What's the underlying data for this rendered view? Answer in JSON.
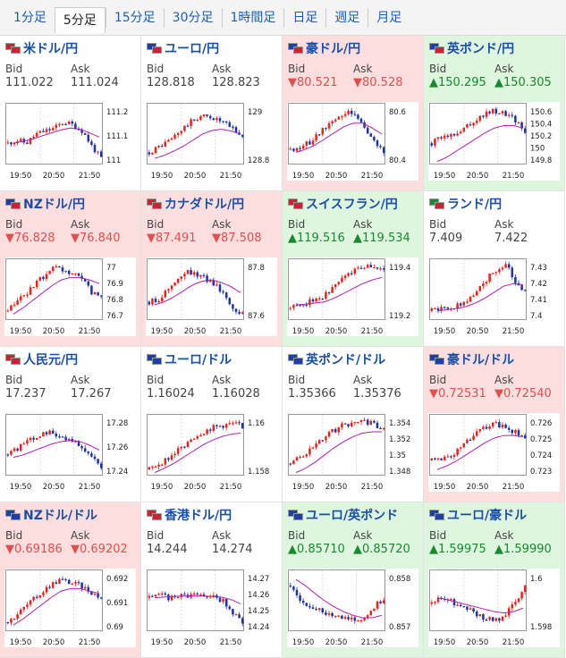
{
  "tabs": [
    {
      "label": "1分足",
      "active": false
    },
    {
      "label": "5分足",
      "active": true
    },
    {
      "label": "15分足",
      "active": false
    },
    {
      "label": "30分足",
      "active": false
    },
    {
      "label": "1時間足",
      "active": false
    },
    {
      "label": "日足",
      "active": false
    },
    {
      "label": "週足",
      "active": false
    },
    {
      "label": "月足",
      "active": false
    }
  ],
  "bid_label": "Bid",
  "ask_label": "Ask",
  "x_ticks": [
    "19:50",
    "20:50",
    "21:50"
  ],
  "colors": {
    "up": "#178a2e",
    "down": "#e0504d",
    "neutral": "#444444",
    "candle_up": "#e8231c",
    "candle_down": "#1f33a8",
    "ma": "#b020b0",
    "down_bg": "#fddede",
    "up_bg": "#def5de"
  },
  "pairs": [
    {
      "name": "米ドル/円",
      "status": "neutral",
      "flags": [
        "#cc2233",
        "#cc2233"
      ],
      "bid": "111.022",
      "ask": "111.024",
      "y_ticks": [
        "111.2",
        "111.1",
        "111"
      ],
      "chart_data": {
        "type": "candlestick",
        "shape": [
          0.35,
          0.4,
          0.35,
          0.5,
          0.55,
          0.6,
          0.7,
          0.65,
          0.55,
          0.3,
          0.1
        ],
        "ma_shape": [
          0.35,
          0.38,
          0.42,
          0.47,
          0.52,
          0.57,
          0.6,
          0.58,
          0.52,
          0.45
        ]
      }
    },
    {
      "name": "ユーロ/円",
      "status": "neutral",
      "flags": [
        "#1f3fa8",
        "#cc2233"
      ],
      "bid": "128.818",
      "ask": "128.823",
      "y_ticks": [
        "129",
        "128.8"
      ],
      "chart_data": {
        "type": "candlestick",
        "shape": [
          0.2,
          0.3,
          0.4,
          0.55,
          0.7,
          0.8,
          0.78,
          0.7,
          0.6,
          0.45
        ],
        "ma_shape": [
          0.1,
          0.15,
          0.22,
          0.3,
          0.4,
          0.5,
          0.56,
          0.58,
          0.55,
          0.5
        ]
      }
    },
    {
      "name": "豪ドル/円",
      "status": "down",
      "flags": [
        "#1f3fa8",
        "#cc2233"
      ],
      "bid": "▼80.521",
      "ask": "▼80.528",
      "y_ticks": [
        "80.6",
        "80.4"
      ],
      "chart_data": {
        "type": "candlestick",
        "shape": [
          0.25,
          0.3,
          0.35,
          0.5,
          0.65,
          0.78,
          0.85,
          0.8,
          0.6,
          0.35,
          0.2
        ],
        "ma_shape": [
          0.2,
          0.25,
          0.32,
          0.42,
          0.52,
          0.62,
          0.68,
          0.68,
          0.6,
          0.5
        ]
      }
    },
    {
      "name": "英ポンド/円",
      "status": "up",
      "flags": [
        "#1f3fa8",
        "#cc2233"
      ],
      "bid": "▲150.295",
      "ask": "▲150.305",
      "y_ticks": [
        "150.6",
        "150.4",
        "150.2",
        "150",
        "149.8"
      ],
      "chart_data": {
        "type": "candlestick",
        "shape": [
          0.35,
          0.45,
          0.5,
          0.6,
          0.72,
          0.82,
          0.88,
          0.85,
          0.75,
          0.55
        ],
        "ma_shape": [
          0.05,
          0.12,
          0.22,
          0.32,
          0.42,
          0.52,
          0.6,
          0.64,
          0.64,
          0.6
        ]
      }
    },
    {
      "name": "NZドル/円",
      "status": "down",
      "flags": [
        "#1f3fa8",
        "#cc2233"
      ],
      "bid": "▼76.828",
      "ask": "▼76.840",
      "y_ticks": [
        "77",
        "76.9",
        "76.8",
        "76.7"
      ],
      "chart_data": {
        "type": "candlestick",
        "shape": [
          0.15,
          0.3,
          0.45,
          0.6,
          0.75,
          0.85,
          0.8,
          0.75,
          0.65,
          0.45,
          0.35
        ],
        "ma_shape": [
          0.1,
          0.2,
          0.32,
          0.44,
          0.56,
          0.66,
          0.7,
          0.7,
          0.66,
          0.6
        ]
      }
    },
    {
      "name": "カナダドル/円",
      "status": "down",
      "flags": [
        "#cc2233",
        "#cc2233"
      ],
      "bid": "▼87.491",
      "ask": "▼87.508",
      "y_ticks": [
        "87.8",
        "87.6"
      ],
      "chart_data": {
        "type": "candlestick",
        "shape": [
          0.3,
          0.35,
          0.5,
          0.65,
          0.8,
          0.75,
          0.68,
          0.6,
          0.45,
          0.2,
          0.1
        ],
        "ma_shape": [
          0.25,
          0.3,
          0.38,
          0.48,
          0.58,
          0.64,
          0.66,
          0.62,
          0.55,
          0.45
        ]
      }
    },
    {
      "name": "スイスフラン/円",
      "status": "up",
      "flags": [
        "#cc2233",
        "#cc2233"
      ],
      "bid": "▲119.516",
      "ask": "▲119.534",
      "y_ticks": [
        "119.4",
        "119.2"
      ],
      "chart_data": {
        "type": "candlestick",
        "shape": [
          0.2,
          0.25,
          0.3,
          0.35,
          0.45,
          0.6,
          0.75,
          0.85,
          0.9,
          0.88,
          0.82
        ],
        "ma_shape": [
          0.25,
          0.26,
          0.28,
          0.3,
          0.36,
          0.44,
          0.52,
          0.6,
          0.66,
          0.7
        ]
      }
    },
    {
      "name": "ランド/円",
      "status": "neutral",
      "flags": [
        "#1a8a3a",
        "#cc2233"
      ],
      "bid": "7.409",
      "ask": "7.422",
      "y_ticks": [
        "7.43",
        "7.42",
        "7.41",
        "7.4"
      ],
      "chart_data": {
        "type": "candlestick",
        "shape": [
          0.15,
          0.2,
          0.2,
          0.25,
          0.35,
          0.5,
          0.7,
          0.85,
          0.9,
          0.6,
          0.5
        ],
        "ma_shape": [
          0.15,
          0.17,
          0.19,
          0.22,
          0.28,
          0.36,
          0.46,
          0.56,
          0.6,
          0.58
        ]
      }
    },
    {
      "name": "人民元/円",
      "status": "neutral",
      "flags": [
        "#cc2233",
        "#cc2233"
      ],
      "bid": "17.237",
      "ask": "17.267",
      "y_ticks": [
        "17.28",
        "17.26",
        "17.24"
      ],
      "chart_data": {
        "type": "candlestick",
        "shape": [
          0.35,
          0.45,
          0.55,
          0.65,
          0.72,
          0.7,
          0.62,
          0.55,
          0.45,
          0.3,
          0.15
        ],
        "ma_shape": [
          0.3,
          0.34,
          0.4,
          0.46,
          0.52,
          0.56,
          0.58,
          0.56,
          0.5,
          0.42
        ]
      }
    },
    {
      "name": "ユーロ/ドル",
      "status": "neutral",
      "flags": [
        "#1f3fa8",
        "#1f3fa8"
      ],
      "bid": "1.16024",
      "ask": "1.16028",
      "y_ticks": [
        "1.16",
        "1.158"
      ],
      "chart_data": {
        "type": "candlestick",
        "shape": [
          0.1,
          0.2,
          0.3,
          0.45,
          0.6,
          0.7,
          0.78,
          0.82,
          0.85,
          0.82
        ],
        "ma_shape": [
          0.05,
          0.12,
          0.2,
          0.3,
          0.4,
          0.5,
          0.58,
          0.64,
          0.68,
          0.7
        ]
      }
    },
    {
      "name": "英ポンド/ドル",
      "status": "neutral",
      "flags": [
        "#1f3fa8",
        "#1f3fa8"
      ],
      "bid": "1.35366",
      "ask": "1.35376",
      "y_ticks": [
        "1.354",
        "1.352",
        "1.35",
        "1.348"
      ],
      "chart_data": {
        "type": "candlestick",
        "shape": [
          0.2,
          0.3,
          0.45,
          0.6,
          0.72,
          0.82,
          0.88,
          0.9,
          0.85,
          0.75
        ],
        "ma_shape": [
          0.05,
          0.12,
          0.22,
          0.34,
          0.46,
          0.56,
          0.64,
          0.7,
          0.72,
          0.72
        ]
      }
    },
    {
      "name": "豪ドル/ドル",
      "status": "down",
      "flags": [
        "#1f3fa8",
        "#1f3fa8"
      ],
      "bid": "▼0.72531",
      "ask": "▼0.72540",
      "y_ticks": [
        "0.726",
        "0.725",
        "0.724",
        "0.723"
      ],
      "chart_data": {
        "type": "candlestick",
        "shape": [
          0.25,
          0.3,
          0.35,
          0.5,
          0.65,
          0.78,
          0.85,
          0.8,
          0.72,
          0.6
        ],
        "ma_shape": [
          0.1,
          0.16,
          0.24,
          0.34,
          0.44,
          0.54,
          0.62,
          0.66,
          0.66,
          0.64
        ]
      }
    },
    {
      "name": "NZドル/ドル",
      "status": "down",
      "flags": [
        "#1f3fa8",
        "#1f3fa8"
      ],
      "bid": "▼0.69186",
      "ask": "▼0.69202",
      "y_ticks": [
        "0.692",
        "0.691",
        "0.69"
      ],
      "chart_data": {
        "type": "candlestick",
        "shape": [
          0.15,
          0.3,
          0.45,
          0.6,
          0.75,
          0.85,
          0.8,
          0.75,
          0.65,
          0.55
        ],
        "ma_shape": [
          0.1,
          0.2,
          0.32,
          0.44,
          0.56,
          0.66,
          0.7,
          0.7,
          0.66,
          0.62
        ]
      }
    },
    {
      "name": "香港ドル/円",
      "status": "neutral",
      "flags": [
        "#cc2233",
        "#cc2233"
      ],
      "bid": "14.244",
      "ask": "14.274",
      "y_ticks": [
        "14.27",
        "14.26",
        "14.25",
        "14.24"
      ],
      "chart_data": {
        "type": "candlestick",
        "shape": [
          0.55,
          0.6,
          0.55,
          0.6,
          0.58,
          0.62,
          0.6,
          0.55,
          0.5,
          0.3,
          0.15
        ],
        "ma_shape": [
          0.55,
          0.56,
          0.57,
          0.58,
          0.58,
          0.58,
          0.57,
          0.56,
          0.52,
          0.45
        ]
      }
    },
    {
      "name": "ユーロ/英ポンド",
      "status": "up",
      "flags": [
        "#1f3fa8",
        "#1f3fa8"
      ],
      "bid": "▲0.85710",
      "ask": "▲0.85720",
      "y_ticks": [
        "0.858",
        "0.857"
      ],
      "chart_data": {
        "type": "candlestick",
        "shape": [
          0.75,
          0.55,
          0.4,
          0.35,
          0.3,
          0.25,
          0.2,
          0.18,
          0.22,
          0.4,
          0.55
        ],
        "ma_shape": [
          0.85,
          0.75,
          0.62,
          0.5,
          0.4,
          0.32,
          0.26,
          0.22,
          0.22,
          0.26
        ]
      }
    },
    {
      "name": "ユーロ/豪ドル",
      "status": "up",
      "flags": [
        "#1f3fa8",
        "#1f3fa8"
      ],
      "bid": "▲1.59975",
      "ask": "▲1.59990",
      "y_ticks": [
        "1.6",
        "1.598"
      ],
      "chart_data": {
        "type": "candlestick",
        "shape": [
          0.45,
          0.55,
          0.5,
          0.4,
          0.35,
          0.25,
          0.2,
          0.18,
          0.3,
          0.5,
          0.72
        ],
        "ma_shape": [
          0.55,
          0.52,
          0.48,
          0.44,
          0.4,
          0.36,
          0.32,
          0.3,
          0.32,
          0.38
        ]
      }
    }
  ]
}
